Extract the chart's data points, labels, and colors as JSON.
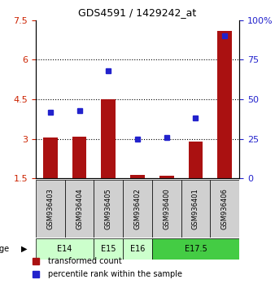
{
  "title": "GDS4591 / 1429242_at",
  "samples": [
    "GSM936403",
    "GSM936404",
    "GSM936405",
    "GSM936402",
    "GSM936400",
    "GSM936401",
    "GSM936406"
  ],
  "transformed_count": [
    3.05,
    3.1,
    4.5,
    1.65,
    1.62,
    2.9,
    7.1
  ],
  "percentile_rank": [
    42,
    43,
    68,
    25,
    26,
    38,
    90
  ],
  "age_groups": [
    {
      "label": "E14",
      "start": 0,
      "end": 1,
      "color": "#ccffcc"
    },
    {
      "label": "E15",
      "start": 2,
      "end": 2,
      "color": "#ccffcc"
    },
    {
      "label": "E16",
      "start": 3,
      "end": 3,
      "color": "#ccffcc"
    },
    {
      "label": "E17.5",
      "start": 4,
      "end": 6,
      "color": "#44cc44"
    }
  ],
  "ylim_left": [
    1.5,
    7.5
  ],
  "ylim_right": [
    0,
    100
  ],
  "yticks_left": [
    1.5,
    3.0,
    4.5,
    6.0,
    7.5
  ],
  "ytick_labels_left": [
    "1.5",
    "3",
    "4.5",
    "6",
    "7.5"
  ],
  "yticks_right": [
    0,
    25,
    50,
    75,
    100
  ],
  "ytick_labels_right": [
    "0",
    "25",
    "50",
    "75",
    "100%"
  ],
  "grid_yticks": [
    3.0,
    4.5,
    6.0
  ],
  "bar_color": "#aa1111",
  "dot_color": "#2222cc",
  "bar_width": 0.5,
  "sample_box_color": "#d0d0d0",
  "legend_items": [
    {
      "color": "#aa1111",
      "label": "transformed count"
    },
    {
      "color": "#2222cc",
      "label": "percentile rank within the sample"
    }
  ]
}
